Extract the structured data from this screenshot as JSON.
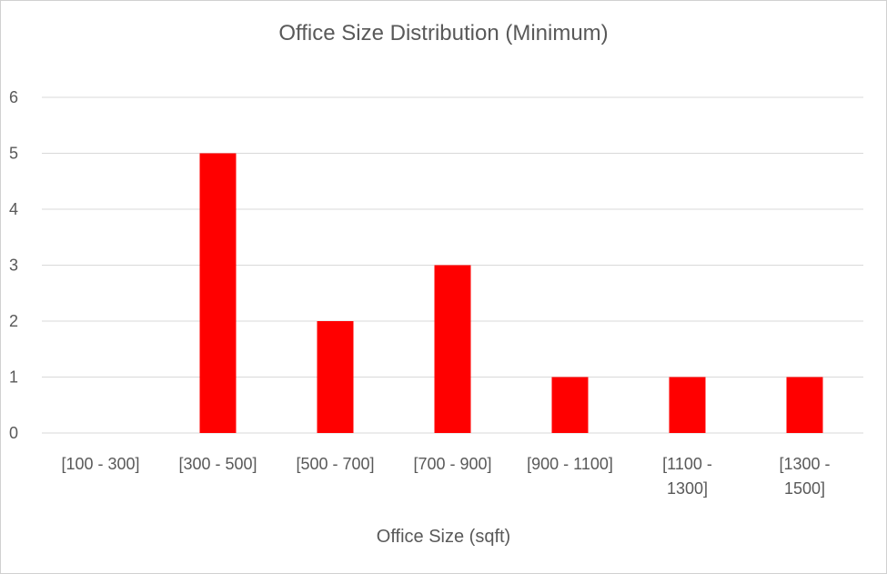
{
  "chart_data": {
    "type": "bar",
    "title": "Office Size Distribution (Minimum)",
    "xlabel": "Office Size (sqft)",
    "ylabel": "",
    "categories": [
      "[100 - 300]",
      "[300 - 500]",
      "[500 - 700]",
      "[700 - 900]",
      "[900 - 1100]",
      "[1100 - 1300]",
      "[1300 - 1500]"
    ],
    "category_lines": [
      [
        "[100 - 300]"
      ],
      [
        "[300 - 500]"
      ],
      [
        "[500 - 700]"
      ],
      [
        "[700 - 900]"
      ],
      [
        "[900 - 1100]"
      ],
      [
        "[1100 -",
        "1300]"
      ],
      [
        "[1300 -",
        "1500]"
      ]
    ],
    "values": [
      0,
      5,
      2,
      3,
      1,
      1,
      1
    ],
    "ylim": [
      0,
      6
    ],
    "yticks": [
      0,
      1,
      2,
      3,
      4,
      5,
      6
    ],
    "grid": true,
    "legend": "none",
    "colors": {
      "bar": "#ff0000",
      "grid": "#d9d9d9",
      "text": "#595959"
    }
  }
}
